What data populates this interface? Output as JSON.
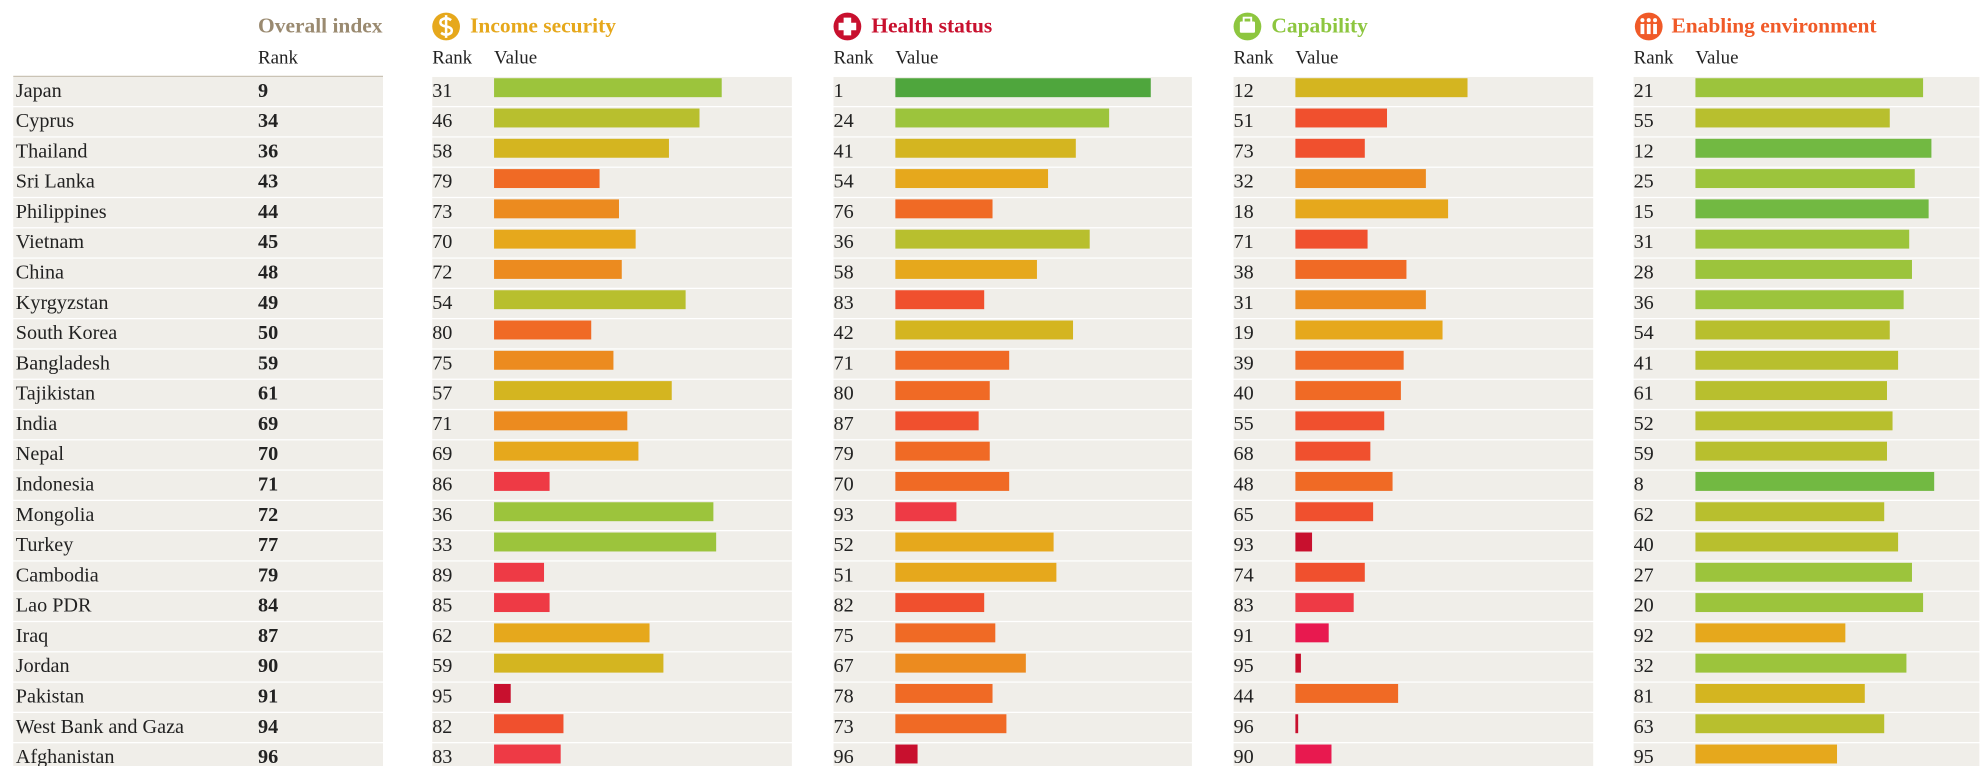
{
  "header": {
    "overall": {
      "title": "Overall index",
      "rank_label": "Rank"
    },
    "pillars": [
      {
        "title": "Income security",
        "rank_label": "Rank",
        "value_label": "Value",
        "color": "#e6a81c"
      },
      {
        "title": "Health status",
        "rank_label": "Rank",
        "value_label": "Value",
        "color": "#c8102e"
      },
      {
        "title": "Capability",
        "rank_label": "Rank",
        "value_label": "Value",
        "color": "#8dc63f"
      },
      {
        "title": "Enabling environment",
        "rank_label": "Rank",
        "value_label": "Value",
        "color": "#f05a28"
      }
    ]
  },
  "bar_scale": {
    "xlim": [
      0,
      100
    ]
  },
  "bar_colors": [
    "#c8102e",
    "#e8194f",
    "#ee3a45",
    "#f0502e",
    "#f06a25",
    "#ec8b1f",
    "#e6a81c",
    "#d4b520",
    "#b8bf2e",
    "#9cc43c",
    "#72b942",
    "#4fa63d"
  ],
  "rows": [
    {
      "country": "Japan",
      "overall_rank": 9,
      "pillars": [
        {
          "rank": 31,
          "value": 82
        },
        {
          "rank": 1,
          "value": 92
        },
        {
          "rank": 12,
          "value": 62
        },
        {
          "rank": 21,
          "value": 82
        }
      ]
    },
    {
      "country": "Cyprus",
      "overall_rank": 34,
      "pillars": [
        {
          "rank": 46,
          "value": 74
        },
        {
          "rank": 24,
          "value": 77
        },
        {
          "rank": 51,
          "value": 33
        },
        {
          "rank": 55,
          "value": 70
        }
      ]
    },
    {
      "country": "Thailand",
      "overall_rank": 36,
      "pillars": [
        {
          "rank": 58,
          "value": 63
        },
        {
          "rank": 41,
          "value": 65
        },
        {
          "rank": 73,
          "value": 25
        },
        {
          "rank": 12,
          "value": 85
        }
      ]
    },
    {
      "country": "Sri Lanka",
      "overall_rank": 43,
      "pillars": [
        {
          "rank": 79,
          "value": 38
        },
        {
          "rank": 54,
          "value": 55
        },
        {
          "rank": 32,
          "value": 47
        },
        {
          "rank": 25,
          "value": 79
        }
      ]
    },
    {
      "country": "Philippines",
      "overall_rank": 44,
      "pillars": [
        {
          "rank": 73,
          "value": 45
        },
        {
          "rank": 76,
          "value": 35
        },
        {
          "rank": 18,
          "value": 55
        },
        {
          "rank": 15,
          "value": 84
        }
      ]
    },
    {
      "country": "Vietnam",
      "overall_rank": 45,
      "pillars": [
        {
          "rank": 70,
          "value": 51
        },
        {
          "rank": 36,
          "value": 70
        },
        {
          "rank": 71,
          "value": 26
        },
        {
          "rank": 31,
          "value": 77
        }
      ]
    },
    {
      "country": "China",
      "overall_rank": 48,
      "pillars": [
        {
          "rank": 72,
          "value": 46
        },
        {
          "rank": 58,
          "value": 51
        },
        {
          "rank": 38,
          "value": 40
        },
        {
          "rank": 28,
          "value": 78
        }
      ]
    },
    {
      "country": "Kyrgyzstan",
      "overall_rank": 49,
      "pillars": [
        {
          "rank": 54,
          "value": 69
        },
        {
          "rank": 83,
          "value": 32
        },
        {
          "rank": 31,
          "value": 47
        },
        {
          "rank": 36,
          "value": 75
        }
      ]
    },
    {
      "country": "South Korea",
      "overall_rank": 50,
      "pillars": [
        {
          "rank": 80,
          "value": 35
        },
        {
          "rank": 42,
          "value": 64
        },
        {
          "rank": 19,
          "value": 53
        },
        {
          "rank": 54,
          "value": 70
        }
      ]
    },
    {
      "country": "Bangladesh",
      "overall_rank": 59,
      "pillars": [
        {
          "rank": 75,
          "value": 43
        },
        {
          "rank": 71,
          "value": 41
        },
        {
          "rank": 39,
          "value": 39
        },
        {
          "rank": 41,
          "value": 73
        }
      ]
    },
    {
      "country": "Tajikistan",
      "overall_rank": 61,
      "pillars": [
        {
          "rank": 57,
          "value": 64
        },
        {
          "rank": 80,
          "value": 34
        },
        {
          "rank": 40,
          "value": 38
        },
        {
          "rank": 61,
          "value": 69
        }
      ]
    },
    {
      "country": "India",
      "overall_rank": 69,
      "pillars": [
        {
          "rank": 71,
          "value": 48
        },
        {
          "rank": 87,
          "value": 30
        },
        {
          "rank": 55,
          "value": 32
        },
        {
          "rank": 52,
          "value": 71
        }
      ]
    },
    {
      "country": "Nepal",
      "overall_rank": 70,
      "pillars": [
        {
          "rank": 69,
          "value": 52
        },
        {
          "rank": 79,
          "value": 34
        },
        {
          "rank": 68,
          "value": 27
        },
        {
          "rank": 59,
          "value": 69
        }
      ]
    },
    {
      "country": "Indonesia",
      "overall_rank": 71,
      "pillars": [
        {
          "rank": 86,
          "value": 20
        },
        {
          "rank": 70,
          "value": 41
        },
        {
          "rank": 48,
          "value": 35
        },
        {
          "rank": 8,
          "value": 86
        }
      ]
    },
    {
      "country": "Mongolia",
      "overall_rank": 72,
      "pillars": [
        {
          "rank": 36,
          "value": 79
        },
        {
          "rank": 93,
          "value": 22
        },
        {
          "rank": 65,
          "value": 28
        },
        {
          "rank": 62,
          "value": 68
        }
      ]
    },
    {
      "country": "Turkey",
      "overall_rank": 77,
      "pillars": [
        {
          "rank": 33,
          "value": 80
        },
        {
          "rank": 52,
          "value": 57
        },
        {
          "rank": 93,
          "value": 6
        },
        {
          "rank": 40,
          "value": 73
        }
      ]
    },
    {
      "country": "Cambodia",
      "overall_rank": 79,
      "pillars": [
        {
          "rank": 89,
          "value": 18
        },
        {
          "rank": 51,
          "value": 58
        },
        {
          "rank": 74,
          "value": 25
        },
        {
          "rank": 27,
          "value": 78
        }
      ]
    },
    {
      "country": "Lao PDR",
      "overall_rank": 84,
      "pillars": [
        {
          "rank": 85,
          "value": 20
        },
        {
          "rank": 82,
          "value": 32
        },
        {
          "rank": 83,
          "value": 21
        },
        {
          "rank": 20,
          "value": 82
        }
      ]
    },
    {
      "country": "Iraq",
      "overall_rank": 87,
      "pillars": [
        {
          "rank": 62,
          "value": 56
        },
        {
          "rank": 75,
          "value": 36
        },
        {
          "rank": 91,
          "value": 12
        },
        {
          "rank": 92,
          "value": 54
        }
      ]
    },
    {
      "country": "Jordan",
      "overall_rank": 90,
      "pillars": [
        {
          "rank": 59,
          "value": 61
        },
        {
          "rank": 67,
          "value": 47
        },
        {
          "rank": 95,
          "value": 2
        },
        {
          "rank": 32,
          "value": 76
        }
      ]
    },
    {
      "country": "Pakistan",
      "overall_rank": 91,
      "pillars": [
        {
          "rank": 95,
          "value": 6
        },
        {
          "rank": 78,
          "value": 35
        },
        {
          "rank": 44,
          "value": 37
        },
        {
          "rank": 81,
          "value": 61
        }
      ]
    },
    {
      "country": "West Bank and Gaza",
      "overall_rank": 94,
      "pillars": [
        {
          "rank": 82,
          "value": 25
        },
        {
          "rank": 73,
          "value": 40
        },
        {
          "rank": 96,
          "value": 1
        },
        {
          "rank": 63,
          "value": 68
        }
      ]
    },
    {
      "country": "Afghanistan",
      "overall_rank": 96,
      "pillars": [
        {
          "rank": 83,
          "value": 24
        },
        {
          "rank": 96,
          "value": 8
        },
        {
          "rank": 90,
          "value": 13
        },
        {
          "rank": 95,
          "value": 51
        }
      ]
    }
  ]
}
